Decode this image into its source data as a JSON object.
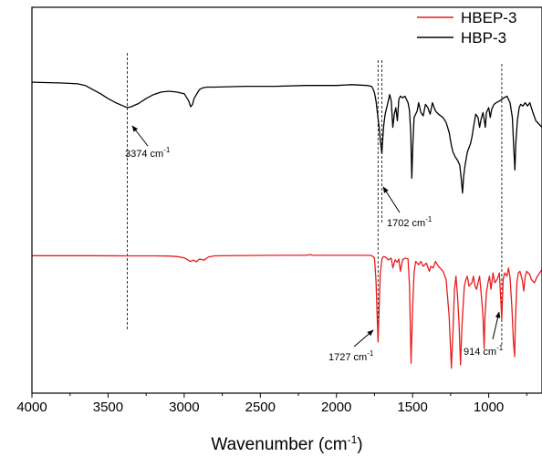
{
  "chart_data": {
    "type": "line",
    "title": "",
    "xlabel": "Wavenumber (cm",
    "xlabel_sup": "-1",
    "xlabel_tail": ")",
    "ylabel": "",
    "xlim": [
      4000,
      650
    ],
    "x_reversed": true,
    "xticks": [
      4000,
      3500,
      3000,
      2500,
      2000,
      1500,
      1000
    ],
    "y_axis_ticks": false,
    "legend_position": "top-right",
    "series": [
      {
        "name": "HBEP-3",
        "color": "#e81d1d",
        "points": [
          [
            4000,
            1.35
          ],
          [
            3800,
            1.35
          ],
          [
            3600,
            1.35
          ],
          [
            3400,
            1.36
          ],
          [
            3200,
            1.36
          ],
          [
            3100,
            1.37
          ],
          [
            3050,
            1.4
          ],
          [
            3000,
            1.48
          ],
          [
            2960,
            1.7
          ],
          [
            2940,
            1.62
          ],
          [
            2920,
            1.72
          ],
          [
            2900,
            1.55
          ],
          [
            2870,
            1.62
          ],
          [
            2840,
            1.42
          ],
          [
            2800,
            1.36
          ],
          [
            2600,
            1.34
          ],
          [
            2400,
            1.33
          ],
          [
            2200,
            1.33
          ],
          [
            2170,
            1.28
          ],
          [
            2160,
            1.33
          ],
          [
            2000,
            1.33
          ],
          [
            1900,
            1.33
          ],
          [
            1800,
            1.33
          ],
          [
            1770,
            1.34
          ],
          [
            1750,
            1.48
          ],
          [
            1740,
            2.9
          ],
          [
            1727,
            6.6
          ],
          [
            1720,
            4.6
          ],
          [
            1712,
            2.4
          ],
          [
            1700,
            1.5
          ],
          [
            1690,
            1.4
          ],
          [
            1680,
            1.42
          ],
          [
            1660,
            1.6
          ],
          [
            1640,
            1.5
          ],
          [
            1630,
            2.1
          ],
          [
            1615,
            1.6
          ],
          [
            1600,
            1.75
          ],
          [
            1590,
            1.55
          ],
          [
            1580,
            2.3
          ],
          [
            1565,
            1.6
          ],
          [
            1550,
            1.5
          ],
          [
            1530,
            1.55
          ],
          [
            1520,
            3.2
          ],
          [
            1510,
            7.9
          ],
          [
            1500,
            4.5
          ],
          [
            1490,
            2.4
          ],
          [
            1480,
            1.7
          ],
          [
            1460,
            1.9
          ],
          [
            1445,
            1.7
          ],
          [
            1430,
            2.0
          ],
          [
            1410,
            1.8
          ],
          [
            1390,
            2.3
          ],
          [
            1380,
            2.0
          ],
          [
            1365,
            2.1
          ],
          [
            1350,
            1.7
          ],
          [
            1330,
            2.0
          ],
          [
            1300,
            2.3
          ],
          [
            1280,
            2.8
          ],
          [
            1260,
            5.0
          ],
          [
            1245,
            8.2
          ],
          [
            1235,
            6.0
          ],
          [
            1225,
            3.4
          ],
          [
            1215,
            2.6
          ],
          [
            1205,
            3.8
          ],
          [
            1195,
            5.5
          ],
          [
            1185,
            8.0
          ],
          [
            1175,
            5.5
          ],
          [
            1160,
            3.2
          ],
          [
            1150,
            2.8
          ],
          [
            1140,
            2.6
          ],
          [
            1130,
            3.2
          ],
          [
            1110,
            3.0
          ],
          [
            1100,
            2.6
          ],
          [
            1090,
            3.2
          ],
          [
            1080,
            3.4
          ],
          [
            1060,
            2.6
          ],
          [
            1048,
            3.8
          ],
          [
            1038,
            5.0
          ],
          [
            1030,
            7.0
          ],
          [
            1025,
            5.2
          ],
          [
            1015,
            3.6
          ],
          [
            1005,
            3.0
          ],
          [
            995,
            2.6
          ],
          [
            985,
            3.4
          ],
          [
            972,
            2.4
          ],
          [
            960,
            3.0
          ],
          [
            945,
            2.8
          ],
          [
            930,
            2.4
          ],
          [
            914,
            5.2
          ],
          [
            905,
            2.8
          ],
          [
            895,
            2.4
          ],
          [
            880,
            2.6
          ],
          [
            870,
            2.1
          ],
          [
            860,
            2.7
          ],
          [
            848,
            4.5
          ],
          [
            838,
            6.5
          ],
          [
            830,
            7.5
          ],
          [
            825,
            5.5
          ],
          [
            815,
            3.0
          ],
          [
            805,
            2.4
          ],
          [
            795,
            2.3
          ],
          [
            780,
            2.8
          ],
          [
            770,
            3.5
          ],
          [
            760,
            2.6
          ],
          [
            750,
            2.3
          ],
          [
            730,
            2.5
          ],
          [
            720,
            2.8
          ],
          [
            700,
            3.0
          ],
          [
            680,
            2.6
          ],
          [
            650,
            2.2
          ]
        ]
      },
      {
        "name": "HBP-3",
        "color": "#000000",
        "points": [
          [
            4000,
            -4.55
          ],
          [
            3800,
            -4.5
          ],
          [
            3700,
            -4.45
          ],
          [
            3650,
            -4.35
          ],
          [
            3600,
            -4.1
          ],
          [
            3550,
            -3.85
          ],
          [
            3500,
            -3.55
          ],
          [
            3450,
            -3.3
          ],
          [
            3400,
            -3.1
          ],
          [
            3374,
            -3.0
          ],
          [
            3350,
            -3.05
          ],
          [
            3300,
            -3.25
          ],
          [
            3250,
            -3.55
          ],
          [
            3200,
            -3.8
          ],
          [
            3150,
            -3.95
          ],
          [
            3100,
            -4.0
          ],
          [
            3050,
            -3.95
          ],
          [
            3000,
            -3.85
          ],
          [
            2970,
            -3.4
          ],
          [
            2958,
            -3.05
          ],
          [
            2945,
            -3.2
          ],
          [
            2935,
            -3.55
          ],
          [
            2920,
            -3.8
          ],
          [
            2900,
            -4.1
          ],
          [
            2880,
            -4.2
          ],
          [
            2850,
            -4.25
          ],
          [
            2800,
            -4.25
          ],
          [
            2600,
            -4.3
          ],
          [
            2400,
            -4.3
          ],
          [
            2200,
            -4.35
          ],
          [
            2000,
            -4.35
          ],
          [
            1900,
            -4.4
          ],
          [
            1800,
            -4.35
          ],
          [
            1770,
            -4.3
          ],
          [
            1760,
            -4.15
          ],
          [
            1750,
            -3.9
          ],
          [
            1740,
            -3.4
          ],
          [
            1730,
            -2.6
          ],
          [
            1720,
            -1.8
          ],
          [
            1712,
            -1.0
          ],
          [
            1705,
            -0.45
          ],
          [
            1702,
            -0.2
          ],
          [
            1698,
            -0.8
          ],
          [
            1690,
            -1.9
          ],
          [
            1680,
            -2.6
          ],
          [
            1670,
            -3.0
          ],
          [
            1660,
            -3.4
          ],
          [
            1650,
            -3.8
          ],
          [
            1640,
            -3.4
          ],
          [
            1630,
            -1.8
          ],
          [
            1620,
            -2.6
          ],
          [
            1610,
            -3.0
          ],
          [
            1600,
            -2.2
          ],
          [
            1590,
            -3.5
          ],
          [
            1580,
            -3.7
          ],
          [
            1565,
            -3.6
          ],
          [
            1550,
            -3.7
          ],
          [
            1530,
            -3.3
          ],
          [
            1520,
            -2.8
          ],
          [
            1512,
            -1.4
          ],
          [
            1505,
            1.3
          ],
          [
            1498,
            -0.8
          ],
          [
            1490,
            -2.4
          ],
          [
            1470,
            -2.8
          ],
          [
            1460,
            -3.3
          ],
          [
            1445,
            -2.7
          ],
          [
            1430,
            -2.5
          ],
          [
            1415,
            -3.2
          ],
          [
            1400,
            -3.0
          ],
          [
            1385,
            -2.6
          ],
          [
            1370,
            -3.3
          ],
          [
            1350,
            -2.8
          ],
          [
            1330,
            -2.6
          ],
          [
            1300,
            -2.4
          ],
          [
            1280,
            -2.1
          ],
          [
            1260,
            -1.5
          ],
          [
            1245,
            -0.7
          ],
          [
            1235,
            -0.3
          ],
          [
            1220,
            0.0
          ],
          [
            1205,
            0.2
          ],
          [
            1190,
            0.5
          ],
          [
            1180,
            1.4
          ],
          [
            1172,
            2.2
          ],
          [
            1165,
            1.2
          ],
          [
            1155,
            0.5
          ],
          [
            1140,
            -0.3
          ],
          [
            1120,
            -0.8
          ],
          [
            1110,
            -1.2
          ],
          [
            1100,
            -1.8
          ],
          [
            1085,
            -2.6
          ],
          [
            1070,
            -2.4
          ],
          [
            1060,
            -1.8
          ],
          [
            1050,
            -2.3
          ],
          [
            1038,
            -2.7
          ],
          [
            1030,
            -2.3
          ],
          [
            1022,
            -1.8
          ],
          [
            1015,
            -2.7
          ],
          [
            1000,
            -3.0
          ],
          [
            990,
            -2.4
          ],
          [
            980,
            -2.9
          ],
          [
            965,
            -3.2
          ],
          [
            950,
            -3.3
          ],
          [
            930,
            -3.4
          ],
          [
            914,
            -3.5
          ],
          [
            900,
            -3.6
          ],
          [
            880,
            -3.7
          ],
          [
            860,
            -3.3
          ],
          [
            845,
            -2.4
          ],
          [
            835,
            -0.5
          ],
          [
            828,
            0.8
          ],
          [
            822,
            -0.8
          ],
          [
            812,
            -2.2
          ],
          [
            800,
            -3.0
          ],
          [
            790,
            -3.2
          ],
          [
            775,
            -3.1
          ],
          [
            760,
            -3.3
          ],
          [
            745,
            -3.1
          ],
          [
            730,
            -3.3
          ],
          [
            710,
            -2.7
          ],
          [
            690,
            -2.2
          ],
          [
            670,
            -2.0
          ],
          [
            650,
            -1.8
          ]
        ]
      }
    ],
    "annotations": [
      {
        "text": "3374 cm",
        "sup": "-1",
        "x": 3374
      },
      {
        "text": "1702 cm",
        "sup": "-1",
        "x": 1702
      },
      {
        "text": "1727 cm",
        "sup": "-1",
        "x": 1727
      },
      {
        "text": "914 cm",
        "sup": "-1",
        "x": 914
      }
    ],
    "reference_lines_x": [
      3374,
      1727,
      1702,
      914
    ]
  }
}
